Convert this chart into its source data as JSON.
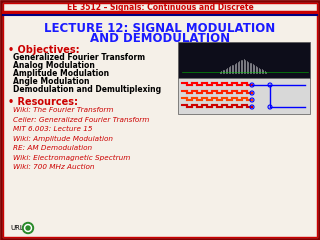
{
  "header_text": "EE 3512 – Signals: Continuous and Discrete",
  "title_line1": "LECTURE 12: SIGNAL MODULATION",
  "title_line2": "AND DEMODULATION",
  "title_color": "#1a1aff",
  "header_color": "#cc0000",
  "bg_color": "#f5f0e8",
  "border_color_outer": "#800000",
  "border_color_inner": "#cc0000",
  "objectives_label": "• Objectives:",
  "objectives_color": "#cc0000",
  "objectives_items": [
    "Generalized Fourier Transform",
    "Analog Modulation",
    "Amplitude Modulation",
    "Angle Modulation",
    "Demodulation and Demultiplexing"
  ],
  "resources_label": "• Resources:",
  "resources_color": "#cc0000",
  "resources_items": [
    "Wiki: The Fourier Transform",
    "Celier: Generalized Fourier Transform",
    "MIT 6.003: Lecture 15",
    "Wiki: Amplitude Modulation",
    "RE: AM Demodulation",
    "Wiki: Electromagnetic Spectrum",
    "Wiki: 700 MHz Auction"
  ],
  "link_color": "#cc0000",
  "body_color": "#000000",
  "url_label": "URL:",
  "header_bar_color": "#cc0000",
  "header_bar_color2": "#000080"
}
